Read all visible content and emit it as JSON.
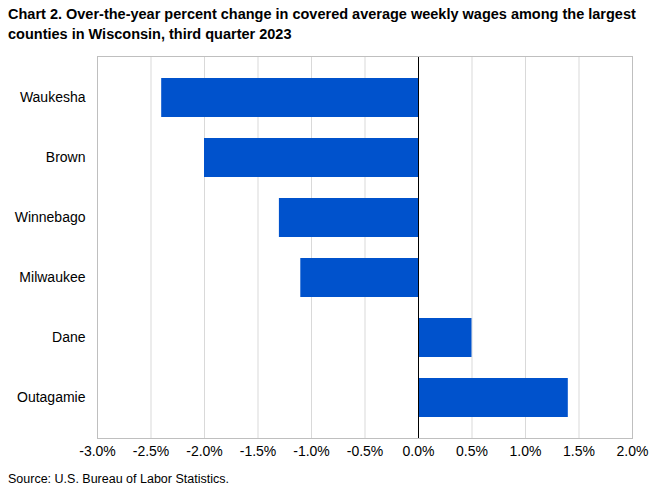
{
  "chart_data": {
    "type": "bar",
    "orientation": "horizontal",
    "title": "Chart 2. Over-the-year percent change in covered average weekly wages among the largest counties in Wisconsin, third quarter 2023",
    "caption": "Source: U.S. Bureau of Labor Statistics.",
    "categories": [
      "Waukesha",
      "Brown",
      "Winnebago",
      "Milwaukee",
      "Dane",
      "Outagamie"
    ],
    "values": [
      -2.4,
      -2.0,
      -1.3,
      -1.1,
      0.5,
      1.4
    ],
    "color": "#0052cc",
    "xlim": [
      -3.0,
      2.0
    ],
    "xticks": [
      {
        "value": -3.0,
        "label": "-3.0%"
      },
      {
        "value": -2.5,
        "label": "-2.5%"
      },
      {
        "value": -2.0,
        "label": "-2.0%"
      },
      {
        "value": -1.5,
        "label": "-1.5%"
      },
      {
        "value": -1.0,
        "label": "-1.0%"
      },
      {
        "value": -0.5,
        "label": "-0.5%"
      },
      {
        "value": 0.0,
        "label": "0.0%"
      },
      {
        "value": 0.5,
        "label": "0.5%"
      },
      {
        "value": 1.0,
        "label": "1.0%"
      },
      {
        "value": 1.5,
        "label": "1.5%"
      },
      {
        "value": 2.0,
        "label": "2.0%"
      }
    ],
    "grid": true
  }
}
